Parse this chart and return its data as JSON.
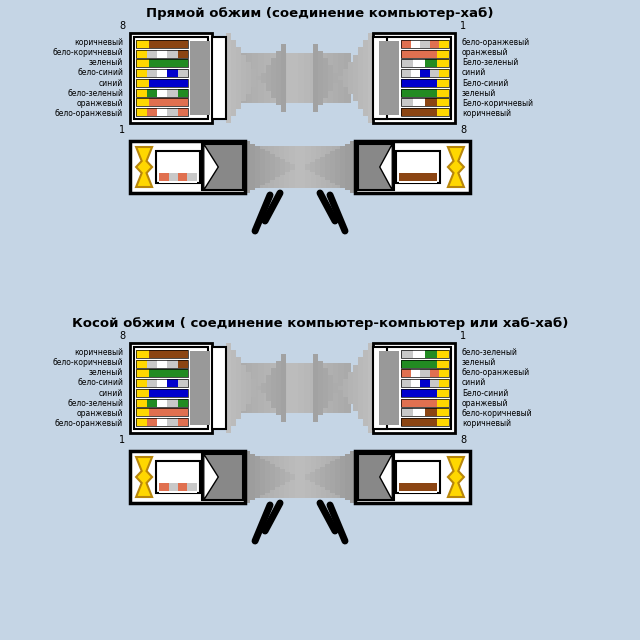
{
  "bg_color": "#c5d5e5",
  "title1": "Прямой обжим (соединение компьютер-хаб)",
  "title2": "Косой обжим ( соединение компьютер-компьютер или хаб-хаб)",
  "title_fontsize": 9.5,
  "straight_left_labels": [
    "коричневый",
    "бело-коричневый",
    "зеленый",
    "бело-синий",
    "синий",
    "бело-зеленый",
    "оранжевый",
    "бело-оранжевый"
  ],
  "straight_right_labels": [
    "бело-оранжевый",
    "оранжевый",
    "Бело-зеленый",
    "синий",
    "Бело-синий",
    "зеленый",
    "Бело-коричневый",
    "коричневый"
  ],
  "cross_left_labels": [
    "коричневый",
    "бело-коричневый",
    "зеленый",
    "бело-синий",
    "синий",
    "бело-зеленый",
    "оранжевый",
    "бело-оранжевый"
  ],
  "cross_right_labels": [
    "бело-зеленый",
    "зеленый",
    "бело-оранжевый",
    "синий",
    "Бело-синий",
    "оранжевый",
    "бело-коричневый",
    "коричневый"
  ],
  "straight_left_wires": [
    [
      "#FFD700",
      "#8B4513",
      "#8B4513",
      "#8B4513"
    ],
    [
      "#FFD700",
      "#c8c8c8",
      "#ffffff",
      "#c8c8c8",
      "#8B4513"
    ],
    [
      "#FFD700",
      "#228B22",
      "#228B22",
      "#228B22"
    ],
    [
      "#FFD700",
      "#c8c8c8",
      "#ffffff",
      "#0000CD",
      "#c8c8c8"
    ],
    [
      "#FFD700",
      "#0000CD",
      "#0000CD",
      "#0000CD"
    ],
    [
      "#FFD700",
      "#228B22",
      "#ffffff",
      "#c8c8c8",
      "#228B22"
    ],
    [
      "#FFD700",
      "#E07050",
      "#E07050",
      "#E07050"
    ],
    [
      "#FFD700",
      "#E07050",
      "#ffffff",
      "#c8c8c8",
      "#E07050"
    ]
  ],
  "straight_right_wires": [
    [
      "#E07050",
      "#ffffff",
      "#c8c8c8",
      "#E07050",
      "#FFD700"
    ],
    [
      "#E07050",
      "#E07050",
      "#E07050",
      "#FFD700"
    ],
    [
      "#c8c8c8",
      "#ffffff",
      "#228B22",
      "#FFD700"
    ],
    [
      "#c8c8c8",
      "#ffffff",
      "#0000CD",
      "#c8c8c8",
      "#FFD700"
    ],
    [
      "#0000CD",
      "#0000CD",
      "#0000CD",
      "#FFD700"
    ],
    [
      "#228B22",
      "#228B22",
      "#228B22",
      "#FFD700"
    ],
    [
      "#c8c8c8",
      "#ffffff",
      "#8B4513",
      "#FFD700"
    ],
    [
      "#8B4513",
      "#8B4513",
      "#8B4513",
      "#FFD700"
    ]
  ],
  "cross_left_wires": [
    [
      "#FFD700",
      "#8B4513",
      "#8B4513",
      "#8B4513"
    ],
    [
      "#FFD700",
      "#c8c8c8",
      "#ffffff",
      "#c8c8c8",
      "#8B4513"
    ],
    [
      "#FFD700",
      "#228B22",
      "#228B22",
      "#228B22"
    ],
    [
      "#FFD700",
      "#c8c8c8",
      "#ffffff",
      "#0000CD",
      "#c8c8c8"
    ],
    [
      "#FFD700",
      "#0000CD",
      "#0000CD",
      "#0000CD"
    ],
    [
      "#FFD700",
      "#228B22",
      "#ffffff",
      "#c8c8c8",
      "#228B22"
    ],
    [
      "#FFD700",
      "#E07050",
      "#E07050",
      "#E07050"
    ],
    [
      "#FFD700",
      "#E07050",
      "#ffffff",
      "#c8c8c8",
      "#E07050"
    ]
  ],
  "cross_right_wires": [
    [
      "#c8c8c8",
      "#ffffff",
      "#228B22",
      "#FFD700"
    ],
    [
      "#228B22",
      "#228B22",
      "#228B22",
      "#FFD700"
    ],
    [
      "#E07050",
      "#ffffff",
      "#c8c8c8",
      "#E07050",
      "#FFD700"
    ],
    [
      "#c8c8c8",
      "#ffffff",
      "#0000CD",
      "#c8c8c8",
      "#FFD700"
    ],
    [
      "#0000CD",
      "#0000CD",
      "#0000CD",
      "#FFD700"
    ],
    [
      "#E07050",
      "#E07050",
      "#E07050",
      "#FFD700"
    ],
    [
      "#c8c8c8",
      "#ffffff",
      "#8B4513",
      "#FFD700"
    ],
    [
      "#8B4513",
      "#8B4513",
      "#8B4513",
      "#FFD700"
    ]
  ]
}
